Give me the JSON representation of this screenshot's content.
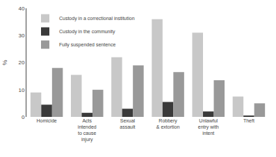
{
  "chart_data": {
    "type": "bar",
    "categories": [
      "Homicide",
      "Acts\nintended\nto cause\ninjury",
      "Sexual\nassault",
      "Robbery\n& extortion",
      "Unlawful\nentry with\nintent",
      "Theft"
    ],
    "series": [
      {
        "name": "Custody in a correctional institution",
        "color": "#c8c8c8",
        "values": [
          9,
          15.5,
          22,
          36,
          31,
          7.5
        ]
      },
      {
        "name": "Custody in the community",
        "color": "#3a3a3a",
        "values": [
          4.5,
          1.5,
          3,
          5.5,
          2,
          0.5
        ]
      },
      {
        "name": "Fully suspended sentence",
        "color": "#999999",
        "values": [
          18,
          10,
          19,
          16.5,
          13.5,
          5
        ]
      }
    ],
    "ylabel": "%",
    "ylim": [
      0,
      40
    ],
    "yticks": [
      0,
      10,
      20,
      30,
      40
    ],
    "grid": false,
    "legend": "upper left"
  }
}
